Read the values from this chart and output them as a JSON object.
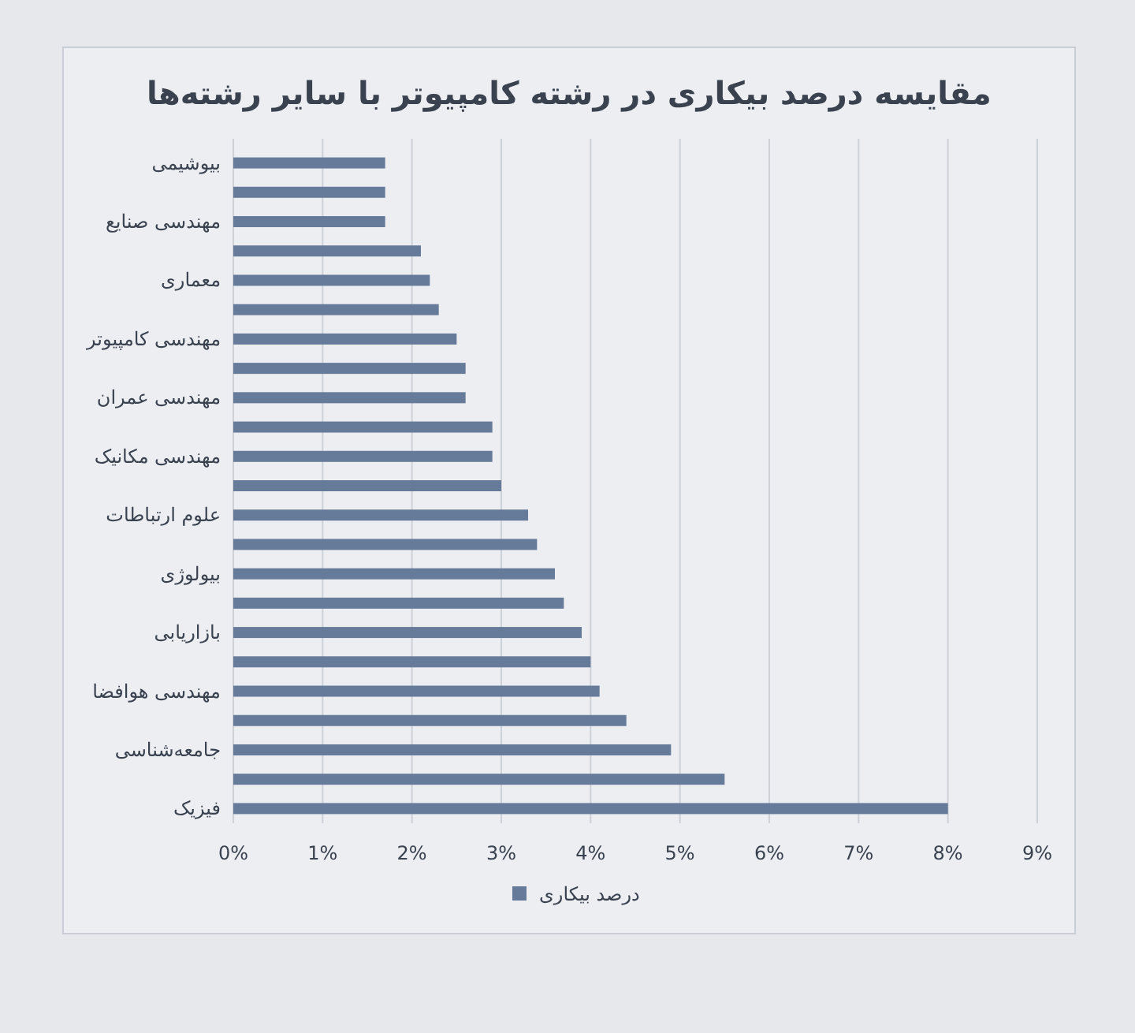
{
  "chart_data": {
    "type": "bar",
    "orientation": "horizontal",
    "title": "مقایسه درصد بیکاری در رشته کامپیوتر با سایر رشته‌ها",
    "categories": [
      "بیوشیمی",
      null,
      "مهندسی صنایع",
      null,
      "معماری",
      null,
      "مهندسی کامپیوتر",
      null,
      "مهندسی عمران",
      null,
      "مهندسی مکانیک",
      null,
      "علوم ارتباطات",
      null,
      "بیولوژی",
      null,
      "بازاریابی",
      null,
      "مهندسی هوافضا",
      null,
      "جامعه‌شناسی",
      null,
      "فیزیک"
    ],
    "series": [
      {
        "name": "درصد بیکاری",
        "color": "#667a99",
        "values": [
          1.7,
          1.7,
          1.7,
          2.1,
          2.2,
          2.3,
          2.5,
          2.6,
          2.6,
          2.9,
          2.9,
          3.0,
          3.3,
          3.4,
          3.6,
          3.7,
          3.9,
          4.0,
          4.1,
          4.4,
          4.9,
          5.5,
          8.0
        ]
      }
    ],
    "xlim": [
      0,
      9
    ],
    "xticks": [
      {
        "value": 0,
        "label": "0%"
      },
      {
        "value": 1,
        "label": "1%"
      },
      {
        "value": 2,
        "label": "2%"
      },
      {
        "value": 3,
        "label": "3%"
      },
      {
        "value": 4,
        "label": "4%"
      },
      {
        "value": 5,
        "label": "5%"
      },
      {
        "value": 6,
        "label": "6%"
      },
      {
        "value": 7,
        "label": "7%"
      },
      {
        "value": 8,
        "label": "8%"
      },
      {
        "value": 9,
        "label": "9%"
      }
    ],
    "grid": "x",
    "legend": "bottom"
  }
}
